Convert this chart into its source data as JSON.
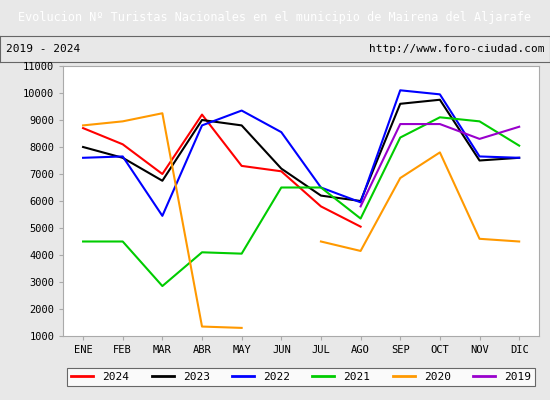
{
  "title": "Evolucion Nº Turistas Nacionales en el municipio de Mairena del Aljarafe",
  "subtitle_left": "2019 - 2024",
  "subtitle_right": "http://www.foro-ciudad.com",
  "title_bg_color": "#4a90d9",
  "title_text_color": "#ffffff",
  "months": [
    "ENE",
    "FEB",
    "MAR",
    "ABR",
    "MAY",
    "JUN",
    "JUL",
    "AGO",
    "SEP",
    "OCT",
    "NOV",
    "DIC"
  ],
  "ylim": [
    1000,
    11000
  ],
  "yticks": [
    1000,
    2000,
    3000,
    4000,
    5000,
    6000,
    7000,
    8000,
    9000,
    10000,
    11000
  ],
  "series": {
    "2024": {
      "color": "#ff0000",
      "data": [
        8700,
        8100,
        7000,
        9200,
        7300,
        7100,
        5800,
        5050,
        null,
        null,
        null,
        null
      ]
    },
    "2023": {
      "color": "#000000",
      "data": [
        8000,
        7600,
        6750,
        9000,
        8800,
        7200,
        6200,
        6000,
        9600,
        9750,
        7500,
        7600
      ]
    },
    "2022": {
      "color": "#0000ff",
      "data": [
        7600,
        7650,
        5450,
        8800,
        9350,
        8550,
        6500,
        5950,
        10100,
        9950,
        7650,
        7600
      ]
    },
    "2021": {
      "color": "#00cc00",
      "data": [
        4500,
        4500,
        2850,
        4100,
        4050,
        6500,
        6500,
        5350,
        8350,
        9100,
        8950,
        8050
      ]
    },
    "2020": {
      "color": "#ff9900",
      "data": [
        8800,
        8950,
        9250,
        1350,
        1300,
        null,
        4500,
        4150,
        6850,
        7800,
        4600,
        4500
      ]
    },
    "2019": {
      "color": "#9900cc",
      "data": [
        null,
        null,
        null,
        null,
        null,
        null,
        null,
        5800,
        8850,
        8850,
        8300,
        8750
      ]
    }
  },
  "legend_order": [
    "2024",
    "2023",
    "2022",
    "2021",
    "2020",
    "2019"
  ],
  "background_color": "#e8e8e8",
  "plot_bg_color": "#e8e8e8",
  "grid_color": "#ffffff",
  "plot_area_color": "#ffffff"
}
